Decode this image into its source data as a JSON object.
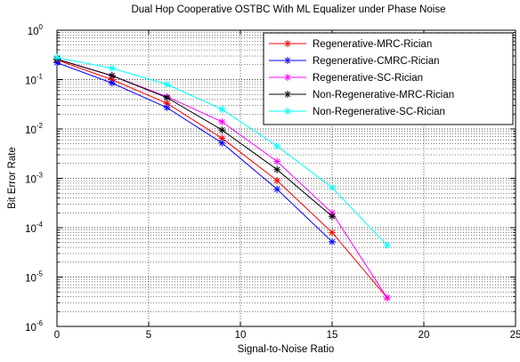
{
  "chart_data": {
    "type": "line",
    "title": "Dual Hop Cooperative OSTBC With ML Equalizer under Phase Noise",
    "xlabel": "Signal-to-Noise Ratio",
    "ylabel": "Bit Error Rate",
    "xlim": [
      0,
      25
    ],
    "ylim": [
      1e-06,
      1
    ],
    "yscale": "log",
    "grid": true,
    "minor_grid": true,
    "legend_position": "top-right",
    "x_ticks": [
      "0",
      "5",
      "10",
      "15",
      "20",
      "25"
    ],
    "y_ticks": [
      {
        "base": "10",
        "exp": "0",
        "value": 1
      },
      {
        "base": "10",
        "exp": "-1",
        "value": 0.1
      },
      {
        "base": "10",
        "exp": "-2",
        "value": 0.01
      },
      {
        "base": "10",
        "exp": "-3",
        "value": 0.001
      },
      {
        "base": "10",
        "exp": "-4",
        "value": 0.0001
      },
      {
        "base": "10",
        "exp": "-5",
        "value": 1e-05
      },
      {
        "base": "10",
        "exp": "-6",
        "value": 1e-06
      }
    ],
    "series": [
      {
        "name": "Regenerative-MRC-Rician",
        "color": "#ff0000",
        "x": [
          0,
          3,
          6,
          9,
          12,
          15,
          18
        ],
        "y": [
          0.25,
          0.1,
          0.033,
          0.0065,
          0.0009,
          8e-05,
          3.8e-06
        ]
      },
      {
        "name": "Regenerative-CMRC-Rician",
        "color": "#0000ff",
        "x": [
          0,
          3,
          6,
          9,
          12,
          15
        ],
        "y": [
          0.22,
          0.085,
          0.027,
          0.0052,
          0.0006,
          5.2e-05
        ]
      },
      {
        "name": "Regenerative-SC-Rician",
        "color": "#ff00ff",
        "x": [
          0,
          3,
          6,
          9,
          12,
          15,
          18
        ],
        "y": [
          0.26,
          0.12,
          0.045,
          0.014,
          0.0022,
          0.0002,
          3.8e-06
        ]
      },
      {
        "name": "Non-Regenerative-MRC-Rician",
        "color": "#000000",
        "x": [
          0,
          3,
          6,
          9,
          12,
          15
        ],
        "y": [
          0.26,
          0.12,
          0.043,
          0.0095,
          0.0015,
          0.00017
        ]
      },
      {
        "name": "Non-Regenerative-SC-Rician",
        "color": "#00ffff",
        "x": [
          0,
          3,
          6,
          9,
          12,
          15,
          18
        ],
        "y": [
          0.28,
          0.17,
          0.08,
          0.025,
          0.0045,
          0.00065,
          4.4e-05
        ]
      }
    ]
  }
}
